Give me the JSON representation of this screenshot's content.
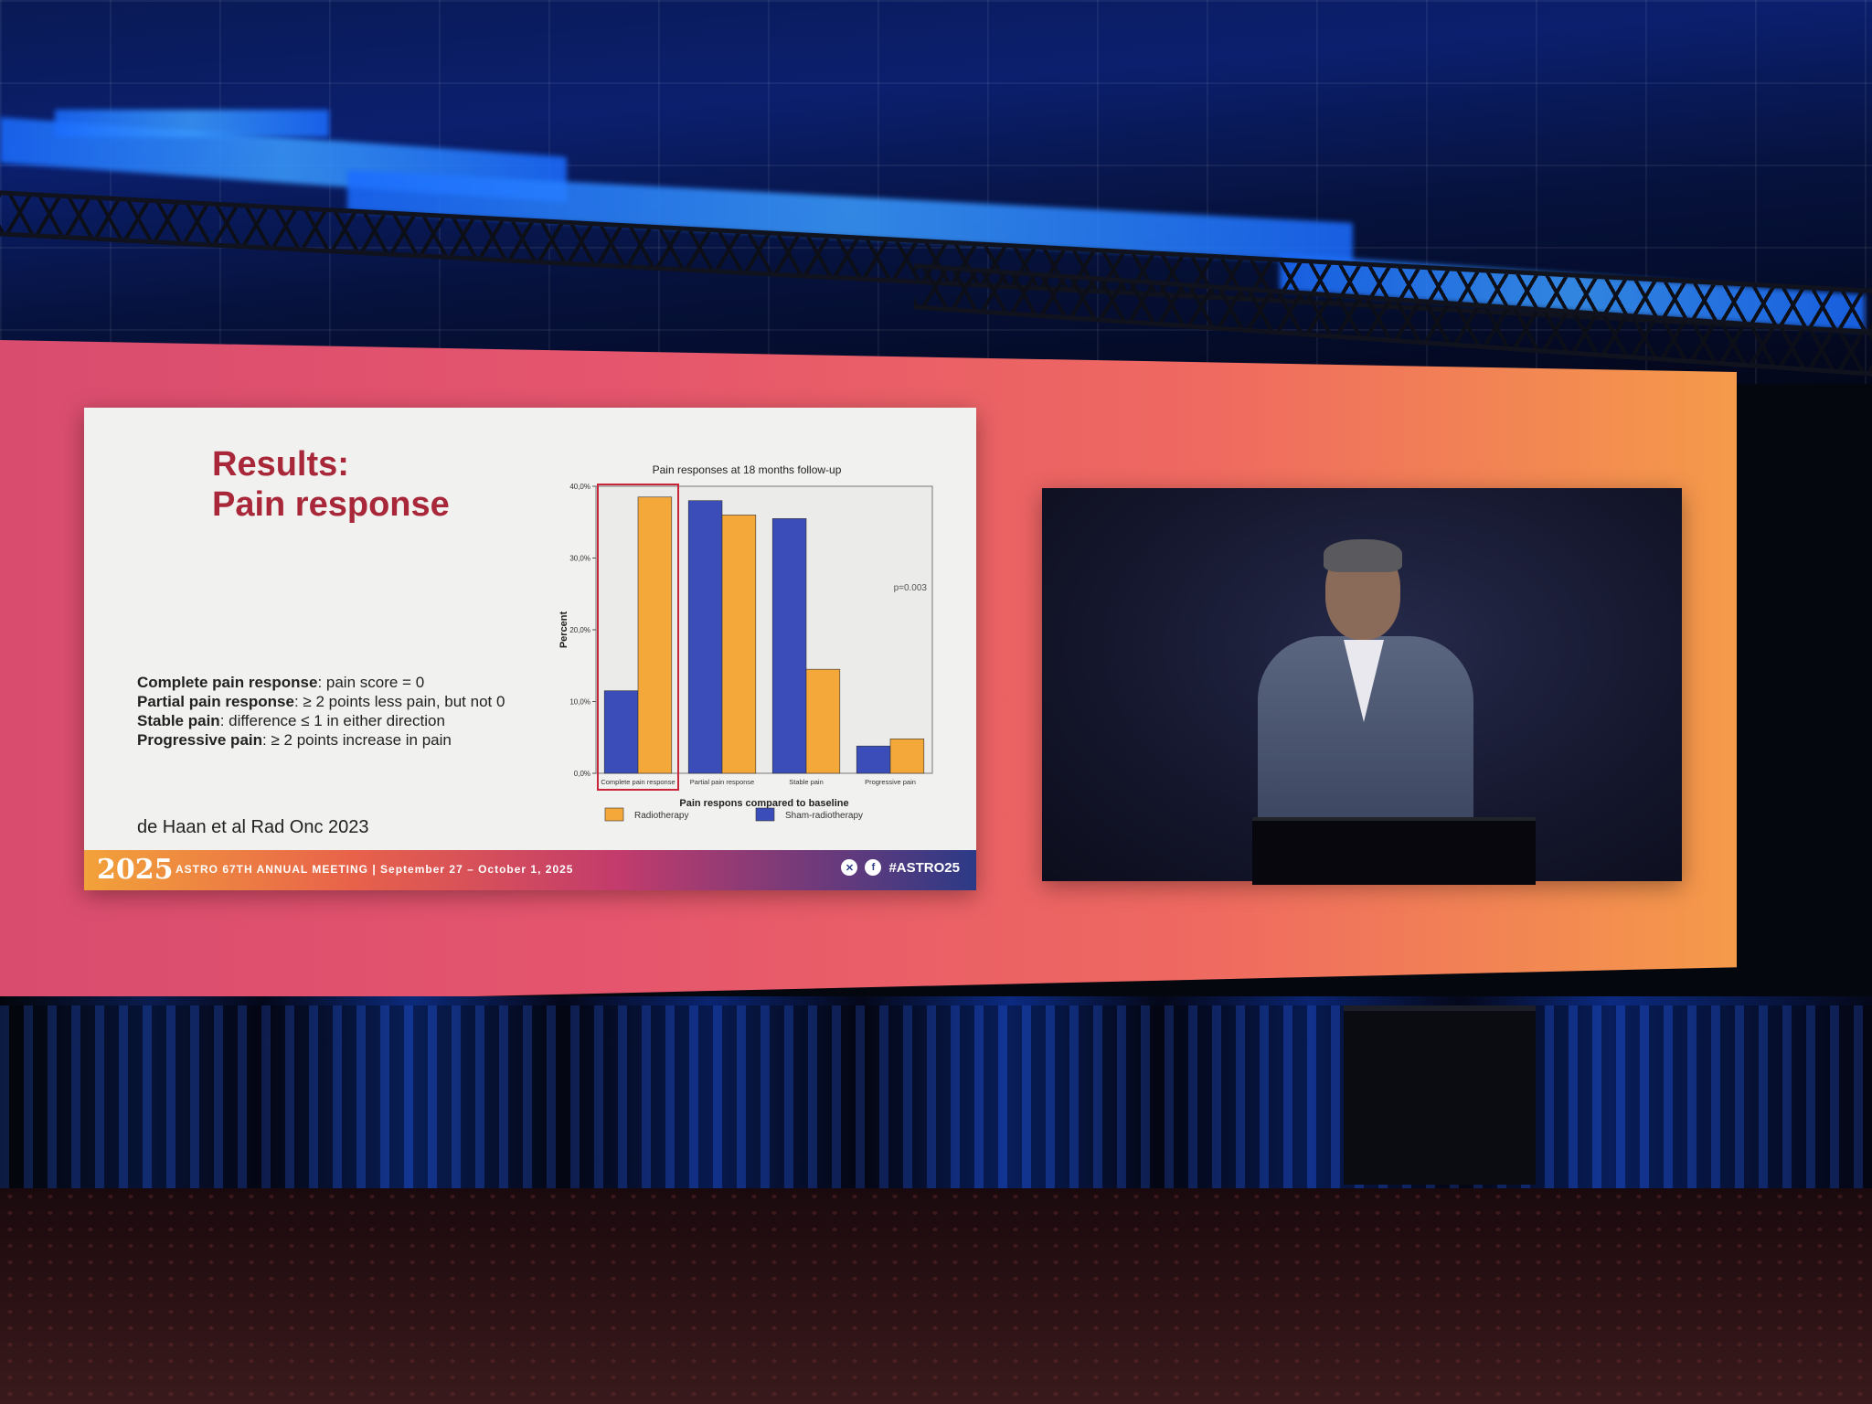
{
  "slide": {
    "title_line1": "Results:",
    "title_line2": "Pain response",
    "definitions": [
      {
        "term": "Complete pain response",
        "desc": ": pain score = 0"
      },
      {
        "term": "Partial pain response",
        "desc": ": ≥ 2 points less pain, but not 0"
      },
      {
        "term": "Stable pain",
        "desc": ": difference ≤ 1 in either direction"
      },
      {
        "term": "Progressive pain",
        "desc": ": ≥ 2 points increase in pain"
      }
    ],
    "citation": "de Haan et al Rad Onc 2023"
  },
  "banner": {
    "year": "2025",
    "text": "ASTRO 67TH ANNUAL MEETING  |  September 27 – October 1, 2025",
    "hashtag": "#ASTRO25",
    "icons": [
      "x-icon",
      "facebook-icon"
    ]
  },
  "chart_data": {
    "type": "bar",
    "title": "Pain responses at 18 months follow-up",
    "xlabel": "Pain respons compared to baseline",
    "ylabel": "Percent",
    "ylim": [
      0,
      40
    ],
    "yticks": [
      "0,0%",
      "10,0%",
      "20,0%",
      "30,0%",
      "40,0%"
    ],
    "ytick_values": [
      0,
      10,
      20,
      30,
      40
    ],
    "categories": [
      "Complete pain response",
      "Partial pain response",
      "Stable pain",
      "Progressive pain"
    ],
    "series": [
      {
        "name": "Sham-radiotherapy",
        "color": "#3a4db8",
        "values": [
          11.5,
          38,
          35.5,
          3.8
        ]
      },
      {
        "name": "Radiotherapy",
        "color": "#f4a83a",
        "values": [
          38.5,
          36,
          14.5,
          4.8
        ]
      }
    ],
    "legend_order": [
      "Radiotherapy",
      "Sham-radiotherapy"
    ],
    "annotation": "p=0.003",
    "highlight_category": "Complete pain response",
    "grid": false,
    "legend_position": "bottom"
  }
}
